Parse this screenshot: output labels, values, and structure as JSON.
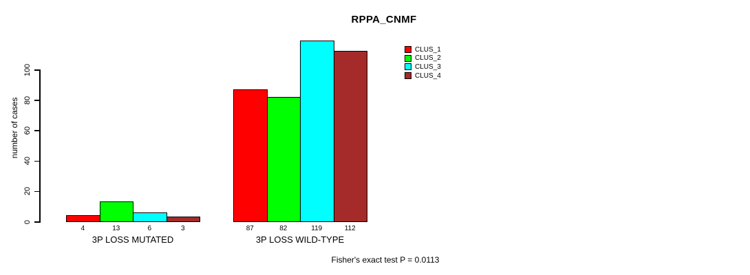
{
  "chart_data": {
    "type": "bar",
    "title": "RPPA_CNMF",
    "ylabel": "number of cases",
    "xlabel": "",
    "categories": [
      "3P LOSS MUTATED",
      "3P LOSS WILD-TYPE"
    ],
    "series": [
      {
        "name": "CLUS_1",
        "color": "#FF0000",
        "values": [
          4,
          87
        ]
      },
      {
        "name": "CLUS_2",
        "color": "#00FF00",
        "values": [
          13,
          82
        ]
      },
      {
        "name": "CLUS_3",
        "color": "#00FFFF",
        "values": [
          6,
          119
        ]
      },
      {
        "name": "CLUS_4",
        "color": "#A52A2A",
        "values": [
          3,
          112
        ]
      }
    ],
    "yticks": [
      0,
      20,
      40,
      60,
      80,
      100
    ],
    "ylim": [
      0,
      120
    ],
    "grid": false,
    "show_values_below_bars": true,
    "legend_position": "right-of-plot",
    "legend_entries": [
      "CLUS_1",
      "CLUS_2",
      "CLUS_3",
      "CLUS_4"
    ],
    "annotation": "Fisher's exact test P = 0.0113"
  }
}
